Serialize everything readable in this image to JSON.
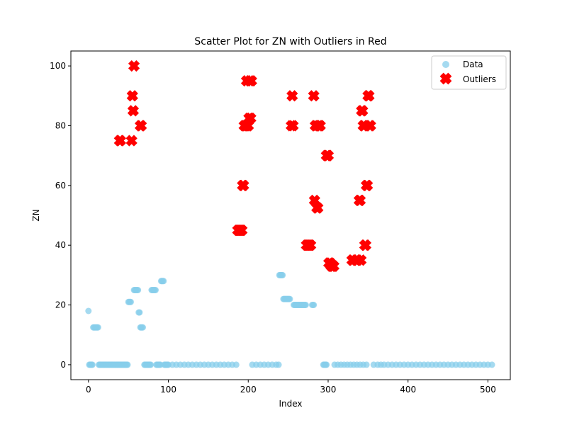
{
  "chart_data": {
    "type": "scatter",
    "title": "Scatter Plot for ZN with Outliers in Red",
    "xlabel": "Index",
    "ylabel": "ZN",
    "xlim": [
      -22,
      528
    ],
    "ylim": [
      -5,
      105
    ],
    "xticks": [
      0,
      100,
      200,
      300,
      400,
      500
    ],
    "yticks": [
      0,
      20,
      40,
      60,
      80,
      100
    ],
    "grid": false,
    "legend_position": "top-right",
    "colors": {
      "data": "#87ceeb",
      "outliers": "#ff0000"
    },
    "series": [
      {
        "name": "Data",
        "marker": "circle",
        "points": [
          [
            0,
            18
          ],
          [
            1,
            0
          ],
          [
            2,
            0
          ],
          [
            3,
            0
          ],
          [
            4,
            0
          ],
          [
            5,
            0
          ],
          [
            6,
            12.5
          ],
          [
            7,
            12.5
          ],
          [
            8,
            12.5
          ],
          [
            9,
            12.5
          ],
          [
            10,
            12.5
          ],
          [
            11,
            12.5
          ],
          [
            12,
            12.5
          ],
          [
            13,
            0
          ],
          [
            14,
            0
          ],
          [
            15,
            0
          ],
          [
            16,
            0
          ],
          [
            17,
            0
          ],
          [
            18,
            0
          ],
          [
            19,
            0
          ],
          [
            20,
            0
          ],
          [
            21,
            0
          ],
          [
            22,
            0
          ],
          [
            23,
            0
          ],
          [
            24,
            0
          ],
          [
            25,
            0
          ],
          [
            26,
            0
          ],
          [
            27,
            0
          ],
          [
            28,
            0
          ],
          [
            29,
            0
          ],
          [
            30,
            0
          ],
          [
            31,
            0
          ],
          [
            32,
            0
          ],
          [
            33,
            0
          ],
          [
            34,
            0
          ],
          [
            35,
            0
          ],
          [
            36,
            0
          ],
          [
            37,
            0
          ],
          [
            38,
            0
          ],
          [
            39,
            0
          ],
          [
            40,
            0
          ],
          [
            41,
            0
          ],
          [
            42,
            0
          ],
          [
            43,
            0
          ],
          [
            44,
            0
          ],
          [
            45,
            0
          ],
          [
            46,
            0
          ],
          [
            47,
            0
          ],
          [
            48,
            0
          ],
          [
            49,
            0
          ],
          [
            50,
            21
          ],
          [
            51,
            21
          ],
          [
            52,
            21
          ],
          [
            53,
            21
          ],
          [
            57,
            25
          ],
          [
            58,
            25
          ],
          [
            59,
            25
          ],
          [
            60,
            25
          ],
          [
            61,
            25
          ],
          [
            62,
            25
          ],
          [
            63,
            17.5
          ],
          [
            64,
            17.5
          ],
          [
            65,
            12.5
          ],
          [
            66,
            12.5
          ],
          [
            67,
            12.5
          ],
          [
            68,
            12.5
          ],
          [
            70,
            0
          ],
          [
            71,
            0
          ],
          [
            72,
            0
          ],
          [
            73,
            0
          ],
          [
            74,
            0
          ],
          [
            75,
            0
          ],
          [
            76,
            0
          ],
          [
            77,
            0
          ],
          [
            78,
            0
          ],
          [
            79,
            25
          ],
          [
            80,
            25
          ],
          [
            81,
            25
          ],
          [
            82,
            25
          ],
          [
            83,
            25
          ],
          [
            84,
            25
          ],
          [
            85,
            0
          ],
          [
            86,
            0
          ],
          [
            87,
            0
          ],
          [
            88,
            0
          ],
          [
            89,
            0
          ],
          [
            90,
            0
          ],
          [
            91,
            28
          ],
          [
            92,
            28
          ],
          [
            93,
            28
          ],
          [
            94,
            28
          ],
          [
            95,
            0
          ],
          [
            96,
            0
          ],
          [
            97,
            0
          ],
          [
            98,
            0
          ],
          [
            99,
            0
          ],
          [
            100,
            0
          ],
          [
            105,
            0
          ],
          [
            110,
            0
          ],
          [
            115,
            0
          ],
          [
            120,
            0
          ],
          [
            125,
            0
          ],
          [
            130,
            0
          ],
          [
            135,
            0
          ],
          [
            140,
            0
          ],
          [
            145,
            0
          ],
          [
            150,
            0
          ],
          [
            155,
            0
          ],
          [
            160,
            0
          ],
          [
            165,
            0
          ],
          [
            170,
            0
          ],
          [
            175,
            0
          ],
          [
            180,
            0
          ],
          [
            185,
            0
          ],
          [
            205,
            0
          ],
          [
            210,
            0
          ],
          [
            215,
            0
          ],
          [
            220,
            0
          ],
          [
            225,
            0
          ],
          [
            230,
            0
          ],
          [
            235,
            0
          ],
          [
            238,
            0
          ],
          [
            239,
            30
          ],
          [
            240,
            30
          ],
          [
            241,
            30
          ],
          [
            242,
            30
          ],
          [
            243,
            30
          ],
          [
            244,
            22
          ],
          [
            245,
            22
          ],
          [
            246,
            22
          ],
          [
            247,
            22
          ],
          [
            248,
            22
          ],
          [
            249,
            22
          ],
          [
            250,
            22
          ],
          [
            251,
            22
          ],
          [
            252,
            22
          ],
          [
            257,
            20
          ],
          [
            258,
            20
          ],
          [
            259,
            20
          ],
          [
            260,
            20
          ],
          [
            261,
            20
          ],
          [
            262,
            20
          ],
          [
            263,
            20
          ],
          [
            264,
            20
          ],
          [
            265,
            20
          ],
          [
            266,
            20
          ],
          [
            267,
            20
          ],
          [
            268,
            20
          ],
          [
            269,
            20
          ],
          [
            270,
            20
          ],
          [
            271,
            20
          ],
          [
            272,
            20
          ],
          [
            280,
            20
          ],
          [
            281,
            20
          ],
          [
            282,
            20
          ],
          [
            294,
            0
          ],
          [
            295,
            0
          ],
          [
            296,
            0
          ],
          [
            297,
            0
          ],
          [
            298,
            0
          ],
          [
            308,
            0
          ],
          [
            312,
            0
          ],
          [
            316,
            0
          ],
          [
            320,
            0
          ],
          [
            324,
            0
          ],
          [
            328,
            0
          ],
          [
            332,
            0
          ],
          [
            336,
            0
          ],
          [
            340,
            0
          ],
          [
            344,
            0
          ],
          [
            348,
            0
          ],
          [
            357,
            0
          ],
          [
            362,
            0
          ],
          [
            366,
            0
          ],
          [
            370,
            0
          ],
          [
            375,
            0
          ],
          [
            380,
            0
          ],
          [
            385,
            0
          ],
          [
            390,
            0
          ],
          [
            395,
            0
          ],
          [
            400,
            0
          ],
          [
            405,
            0
          ],
          [
            410,
            0
          ],
          [
            415,
            0
          ],
          [
            420,
            0
          ],
          [
            425,
            0
          ],
          [
            430,
            0
          ],
          [
            435,
            0
          ],
          [
            440,
            0
          ],
          [
            445,
            0
          ],
          [
            450,
            0
          ],
          [
            455,
            0
          ],
          [
            460,
            0
          ],
          [
            465,
            0
          ],
          [
            470,
            0
          ],
          [
            475,
            0
          ],
          [
            480,
            0
          ],
          [
            485,
            0
          ],
          [
            490,
            0
          ],
          [
            495,
            0
          ],
          [
            500,
            0
          ],
          [
            505,
            0
          ]
        ]
      },
      {
        "name": "Outliers",
        "marker": "X",
        "points": [
          [
            39,
            75
          ],
          [
            40,
            75
          ],
          [
            54,
            75
          ],
          [
            55,
            90
          ],
          [
            56,
            85
          ],
          [
            57,
            100
          ],
          [
            65,
            80
          ],
          [
            66,
            80
          ],
          [
            187,
            45
          ],
          [
            188,
            45
          ],
          [
            189,
            45
          ],
          [
            190,
            45
          ],
          [
            191,
            45
          ],
          [
            192,
            45
          ],
          [
            193,
            60
          ],
          [
            194,
            60
          ],
          [
            195,
            80
          ],
          [
            196,
            80
          ],
          [
            197,
            80
          ],
          [
            198,
            95
          ],
          [
            199,
            80
          ],
          [
            200,
            80
          ],
          [
            201,
            82.5
          ],
          [
            202,
            95
          ],
          [
            203,
            82.5
          ],
          [
            204,
            95
          ],
          [
            254,
            80
          ],
          [
            255,
            90
          ],
          [
            256,
            80
          ],
          [
            273,
            40
          ],
          [
            274,
            40
          ],
          [
            275,
            40
          ],
          [
            276,
            40
          ],
          [
            277,
            40
          ],
          [
            278,
            40
          ],
          [
            282,
            90
          ],
          [
            283,
            55
          ],
          [
            284,
            80
          ],
          [
            285,
            80
          ],
          [
            286,
            52.5
          ],
          [
            287,
            52.5
          ],
          [
            288,
            80
          ],
          [
            289,
            80
          ],
          [
            290,
            80
          ],
          [
            298,
            70
          ],
          [
            299,
            70
          ],
          [
            300,
            70
          ],
          [
            301,
            34
          ],
          [
            302,
            34
          ],
          [
            303,
            34
          ],
          [
            304,
            33
          ],
          [
            305,
            33
          ],
          [
            306,
            33
          ],
          [
            307,
            33
          ],
          [
            330,
            35
          ],
          [
            331,
            35
          ],
          [
            335,
            35
          ],
          [
            336,
            35
          ],
          [
            337,
            35
          ],
          [
            339,
            55
          ],
          [
            340,
            55
          ],
          [
            341,
            35
          ],
          [
            342,
            85
          ],
          [
            343,
            85
          ],
          [
            344,
            80
          ],
          [
            345,
            80
          ],
          [
            346,
            40
          ],
          [
            347,
            40
          ],
          [
            348,
            60
          ],
          [
            349,
            60
          ],
          [
            350,
            90
          ],
          [
            351,
            90
          ],
          [
            352,
            80
          ],
          [
            353,
            80
          ]
        ]
      }
    ]
  }
}
